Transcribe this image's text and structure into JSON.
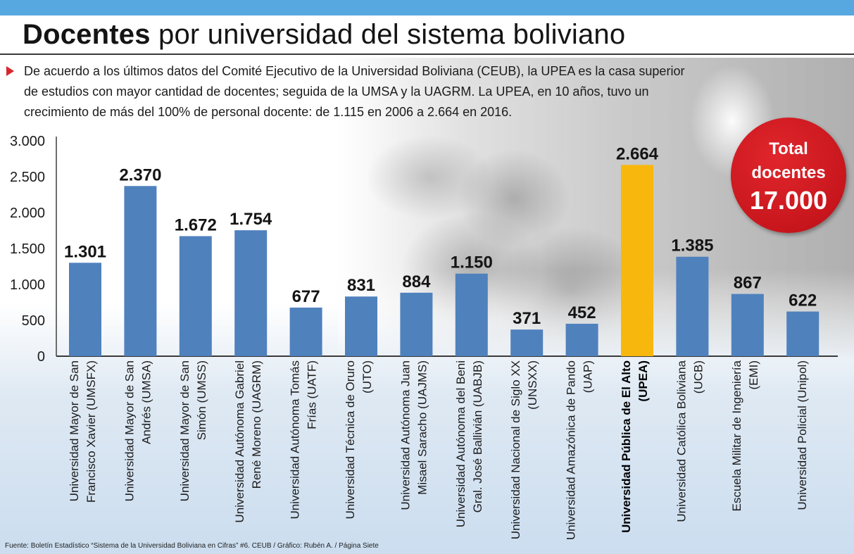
{
  "title": {
    "bold": "Docentes",
    "rest": "por universidad del sistema boliviano"
  },
  "intro": "De acuerdo a los últimos datos del Comité Ejecutivo de la Universidad Boliviana (CEUB), la UPEA es la casa superior de estudios con mayor cantidad de docentes; seguida de la UMSA y la UAGRM. La UPEA, en 10 años,  tuvo un crecimiento de más del 100% de personal docente: de 1.115 en 2006 a 2.664 en 2016.",
  "badge": {
    "label_line1": "Total",
    "label_line2": "docentes",
    "value": "17.000"
  },
  "source": "Fuente: Boletín Estadístico “Sistema de la Universidad Boliviana en Cifras” #6. CEUB / Gráfico: Rubén A. / Página Siete",
  "colors": {
    "bar": "#4f81bd",
    "highlight": "#f8b70c",
    "accent": "#d7262b",
    "band": "#57a8e0"
  },
  "chart_data": {
    "type": "bar",
    "title": "Docentes por universidad del sistema boliviano",
    "ylim": [
      0,
      3000
    ],
    "yticks": [
      0,
      500,
      1000,
      1500,
      2000,
      2500,
      3000
    ],
    "ytick_labels": [
      "0",
      "500",
      "1.000",
      "1.500",
      "2.000",
      "2.500",
      "3.000"
    ],
    "grid": false,
    "highlight_index": 10,
    "categories": [
      [
        "Universidad Mayor de San",
        "Francisco Xavier (UMSFX)"
      ],
      [
        "Universidad Mayor de San",
        "Andrés (UMSA)"
      ],
      [
        "Universidad Mayor de San",
        "Simón (UMSS)"
      ],
      [
        "Universidad Autónoma Gabriel",
        "René Moreno (UAGRM)"
      ],
      [
        "Universidad Autónoma Tomás",
        "Frías (UATF)"
      ],
      [
        "Universidad Técnica de Oruro",
        "(UTO)"
      ],
      [
        "Universidad Autónoma Juan",
        "Misael Saracho (UAJMS)"
      ],
      [
        "Universidad Autónoma del Beni",
        "Gral. José Ballivián (UABJB)"
      ],
      [
        "Universidad Nacional de Siglo XX",
        "(UNSXX)"
      ],
      [
        "Universidad Amazónica de Pando",
        "(UAP)"
      ],
      [
        "Universidad Pública de El Alto",
        "(UPEA)"
      ],
      [
        "Universidad Católica Boliviana",
        "(UCB)"
      ],
      [
        "Escuela Militar de Ingeniería",
        "(EMI)"
      ],
      [
        "Universidad Policial (Unipol)"
      ]
    ],
    "values": [
      1301,
      2370,
      1672,
      1754,
      677,
      831,
      884,
      1150,
      371,
      452,
      2664,
      1385,
      867,
      622
    ],
    "value_labels": [
      "1.301",
      "2.370",
      "1.672",
      "1.754",
      "677",
      "831",
      "884",
      "1.150",
      "371",
      "452",
      "2.664",
      "1.385",
      "867",
      "622"
    ]
  }
}
